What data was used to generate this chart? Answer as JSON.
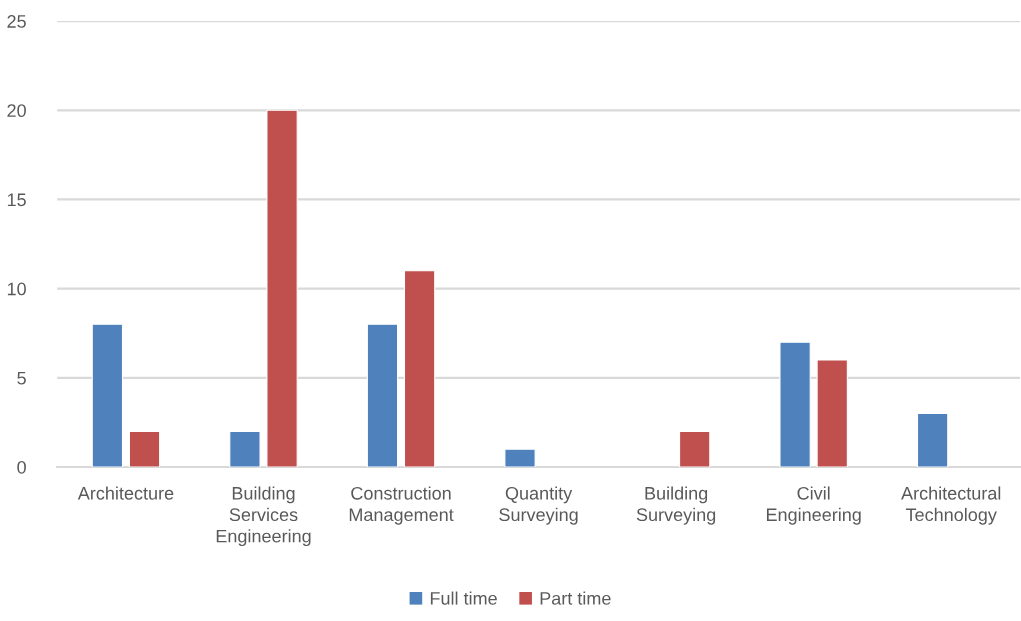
{
  "chart_data": {
    "type": "bar",
    "categories": [
      "Architecture",
      "Building Services Engineering",
      "Construction Management",
      "Quantity Surveying",
      "Building Surveying",
      "Civil Engineering",
      "Architectural Technology"
    ],
    "series": [
      {
        "name": "Full time",
        "color": "#4f81bd",
        "values": [
          8,
          2,
          8,
          1,
          null,
          7,
          3
        ]
      },
      {
        "name": "Part time",
        "color": "#c0504d",
        "values": [
          2,
          20,
          11,
          null,
          2,
          6,
          null
        ]
      }
    ],
    "ylim": [
      0,
      25
    ],
    "yticks": [
      0,
      5,
      10,
      15,
      20,
      25
    ],
    "grid": "y",
    "legend": "bottom"
  }
}
